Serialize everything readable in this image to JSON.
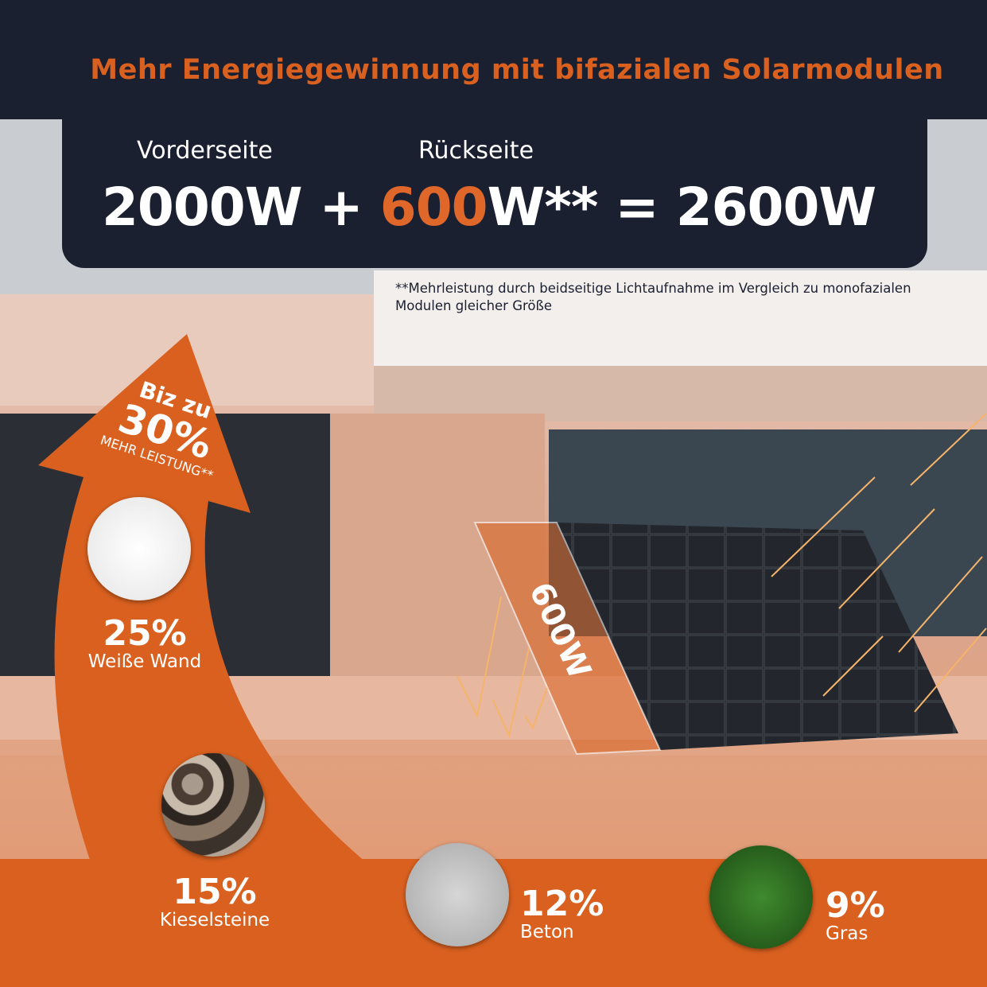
{
  "header": {
    "title": "Mehr Energiegewinnung mit bifazialen Solarmodulen",
    "front_label": "Vorderseite",
    "back_label": "Rückseite",
    "equation": {
      "front": "2000W",
      "plus": "+",
      "back_value": "600",
      "back_unit": "W**",
      "equals": "=",
      "total": "2600W"
    }
  },
  "footnote": "**Mehrleistung durch beidseitige Lichtaufnahme im Vergleich zu monofazialen Modulen gleicher Größe",
  "arrow": {
    "line1": "Biz zu",
    "value": "30%",
    "line3": "MEHR LEISTUNG**"
  },
  "panel_label": "600W",
  "materials": [
    {
      "percent": "25%",
      "name": "Weiße Wand"
    },
    {
      "percent": "15%",
      "name": "Kieselsteine"
    },
    {
      "percent": "12%",
      "name": "Beton"
    },
    {
      "percent": "9%",
      "name": "Gras"
    }
  ],
  "colors": {
    "accent": "#d9601f",
    "navy": "#1b2030"
  }
}
